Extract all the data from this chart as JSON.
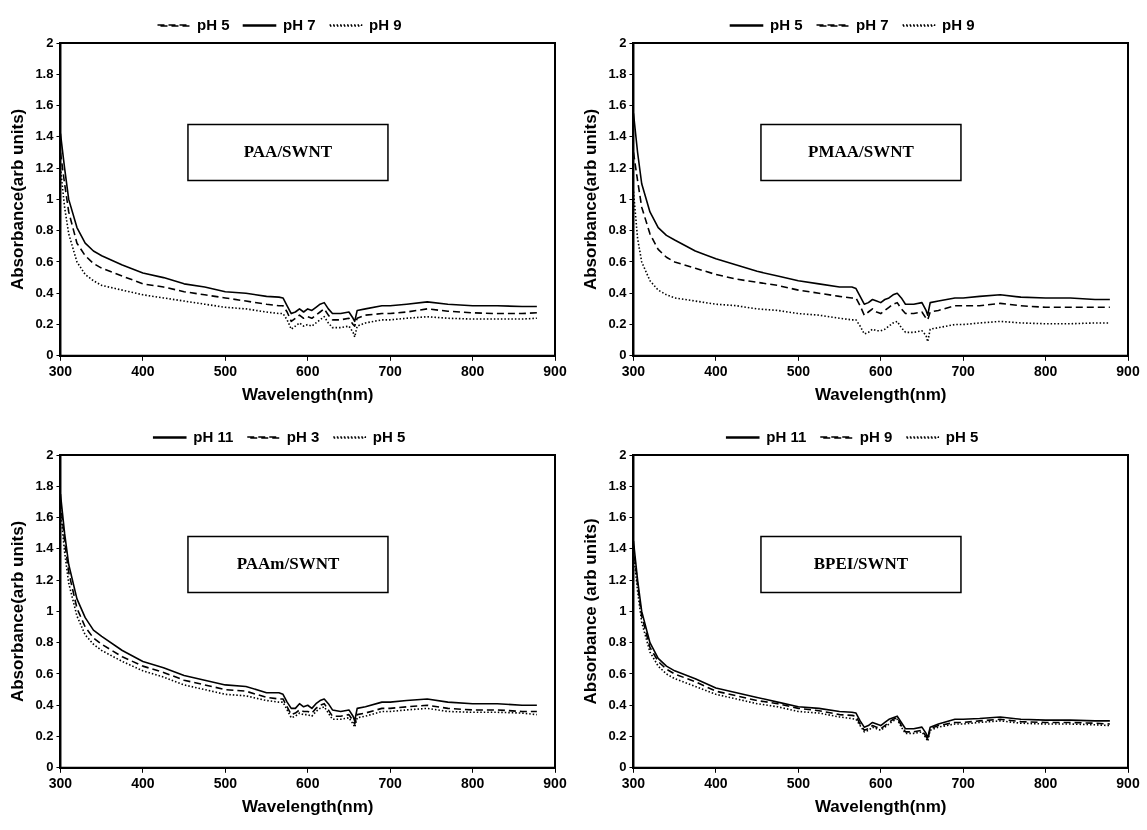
{
  "chart_data": [
    {
      "type": "line",
      "xlabel": "Wavelength(nm)",
      "ylabel": "Absorbance(arb units)",
      "annotations": [
        "PAA/SWNT"
      ],
      "legend": "top",
      "grid": false,
      "x": [
        300,
        305,
        310,
        320,
        330,
        340,
        350,
        375,
        400,
        425,
        450,
        475,
        500,
        525,
        550,
        565,
        570,
        575,
        580,
        585,
        590,
        595,
        600,
        605,
        610,
        615,
        620,
        625,
        630,
        640,
        650,
        655,
        657,
        660,
        670,
        690,
        700,
        720,
        745,
        770,
        800,
        830,
        860,
        878
      ],
      "xlim": [
        300,
        900
      ],
      "xticks": [
        300,
        400,
        500,
        600,
        700,
        800,
        900
      ],
      "ylim": [
        0,
        2
      ],
      "yticks": [
        0,
        0.2,
        0.4,
        0.6,
        0.8,
        1,
        1.2,
        1.4,
        1.6,
        1.8,
        2
      ],
      "series": [
        {
          "name": "pH 5",
          "color": "#000000",
          "line_style": "dashed",
          "values": [
            1.3,
            1.1,
            0.92,
            0.72,
            0.64,
            0.59,
            0.56,
            0.51,
            0.46,
            0.44,
            0.41,
            0.39,
            0.37,
            0.35,
            0.33,
            0.32,
            0.32,
            0.28,
            0.22,
            0.24,
            0.26,
            0.24,
            0.25,
            0.24,
            0.26,
            0.28,
            0.3,
            0.26,
            0.23,
            0.23,
            0.24,
            0.2,
            0.19,
            0.24,
            0.26,
            0.27,
            0.27,
            0.28,
            0.3,
            0.285,
            0.275,
            0.27,
            0.27,
            0.275
          ]
        },
        {
          "name": "pH 7",
          "color": "#000000",
          "line_style": "solid",
          "values": [
            1.42,
            1.2,
            1.0,
            0.82,
            0.72,
            0.67,
            0.64,
            0.58,
            0.53,
            0.5,
            0.46,
            0.44,
            0.41,
            0.4,
            0.38,
            0.375,
            0.37,
            0.32,
            0.27,
            0.28,
            0.3,
            0.28,
            0.3,
            0.29,
            0.31,
            0.33,
            0.34,
            0.3,
            0.27,
            0.27,
            0.28,
            0.24,
            0.22,
            0.29,
            0.3,
            0.32,
            0.32,
            0.33,
            0.345,
            0.33,
            0.32,
            0.32,
            0.315,
            0.315
          ]
        },
        {
          "name": "pH 9",
          "color": "#000000",
          "line_style": "dotted",
          "values": [
            1.2,
            0.95,
            0.78,
            0.6,
            0.52,
            0.48,
            0.45,
            0.42,
            0.39,
            0.37,
            0.35,
            0.33,
            0.31,
            0.3,
            0.28,
            0.27,
            0.27,
            0.23,
            0.17,
            0.19,
            0.21,
            0.19,
            0.2,
            0.19,
            0.21,
            0.23,
            0.25,
            0.21,
            0.18,
            0.18,
            0.19,
            0.15,
            0.12,
            0.19,
            0.21,
            0.23,
            0.23,
            0.24,
            0.25,
            0.24,
            0.235,
            0.235,
            0.235,
            0.24
          ]
        }
      ]
    },
    {
      "type": "line",
      "xlabel": "Wavelength(nm)",
      "ylabel": "Absorbance(arb units)",
      "annotations": [
        "PMAA/SWNT"
      ],
      "legend": "top",
      "grid": false,
      "x": [
        300,
        305,
        310,
        320,
        330,
        340,
        350,
        375,
        400,
        425,
        450,
        475,
        500,
        525,
        550,
        565,
        570,
        575,
        580,
        585,
        590,
        595,
        600,
        605,
        610,
        615,
        620,
        625,
        630,
        640,
        650,
        655,
        657,
        660,
        670,
        690,
        700,
        720,
        745,
        770,
        800,
        830,
        860,
        878
      ],
      "xlim": [
        300,
        900
      ],
      "xticks": [
        300,
        400,
        500,
        600,
        700,
        800,
        900
      ],
      "ylim": [
        0,
        2
      ],
      "yticks": [
        0,
        0.2,
        0.4,
        0.6,
        0.8,
        1,
        1.2,
        1.4,
        1.6,
        1.8,
        2
      ],
      "series": [
        {
          "name": "pH 5",
          "color": "#000000",
          "line_style": "solid",
          "values": [
            1.55,
            1.3,
            1.1,
            0.92,
            0.82,
            0.77,
            0.74,
            0.67,
            0.62,
            0.58,
            0.54,
            0.51,
            0.48,
            0.46,
            0.44,
            0.44,
            0.43,
            0.38,
            0.33,
            0.34,
            0.36,
            0.35,
            0.34,
            0.36,
            0.37,
            0.39,
            0.4,
            0.37,
            0.33,
            0.33,
            0.34,
            0.29,
            0.26,
            0.34,
            0.35,
            0.37,
            0.37,
            0.38,
            0.39,
            0.375,
            0.37,
            0.37,
            0.36,
            0.36
          ]
        },
        {
          "name": "pH 7",
          "color": "#000000",
          "line_style": "dashed",
          "values": [
            1.3,
            1.12,
            0.95,
            0.78,
            0.68,
            0.63,
            0.6,
            0.56,
            0.52,
            0.49,
            0.47,
            0.45,
            0.42,
            0.4,
            0.38,
            0.37,
            0.37,
            0.32,
            0.26,
            0.28,
            0.3,
            0.28,
            0.27,
            0.29,
            0.31,
            0.33,
            0.34,
            0.3,
            0.27,
            0.27,
            0.28,
            0.24,
            0.23,
            0.28,
            0.29,
            0.32,
            0.32,
            0.32,
            0.335,
            0.32,
            0.31,
            0.31,
            0.31,
            0.31
          ]
        },
        {
          "name": "pH 9",
          "color": "#000000",
          "line_style": "dotted",
          "values": [
            1.05,
            0.75,
            0.6,
            0.48,
            0.42,
            0.39,
            0.37,
            0.35,
            0.33,
            0.32,
            0.3,
            0.29,
            0.27,
            0.26,
            0.24,
            0.23,
            0.23,
            0.19,
            0.14,
            0.15,
            0.17,
            0.16,
            0.16,
            0.17,
            0.19,
            0.21,
            0.22,
            0.18,
            0.15,
            0.15,
            0.16,
            0.13,
            0.09,
            0.17,
            0.18,
            0.2,
            0.2,
            0.21,
            0.22,
            0.21,
            0.205,
            0.205,
            0.21,
            0.21
          ]
        }
      ]
    },
    {
      "type": "line",
      "xlabel": "Wavelength(nm)",
      "ylabel": "Absorbance(arb units)",
      "annotations": [
        "PAAm/SWNT"
      ],
      "legend": "top",
      "grid": false,
      "x": [
        300,
        305,
        310,
        320,
        330,
        340,
        350,
        375,
        400,
        425,
        450,
        475,
        500,
        525,
        550,
        565,
        570,
        575,
        580,
        585,
        590,
        595,
        600,
        605,
        610,
        615,
        620,
        625,
        630,
        640,
        650,
        655,
        657,
        660,
        670,
        690,
        700,
        720,
        745,
        770,
        800,
        830,
        860,
        878
      ],
      "xlim": [
        300,
        900
      ],
      "xticks": [
        300,
        400,
        500,
        600,
        700,
        800,
        900
      ],
      "ylim": [
        0,
        2
      ],
      "yticks": [
        0,
        0.2,
        0.4,
        0.6,
        0.8,
        1,
        1.2,
        1.4,
        1.6,
        1.8,
        2
      ],
      "series": [
        {
          "name": "pH 11",
          "color": "#000000",
          "line_style": "solid",
          "values": [
            1.75,
            1.5,
            1.3,
            1.08,
            0.96,
            0.88,
            0.84,
            0.75,
            0.68,
            0.64,
            0.59,
            0.56,
            0.53,
            0.52,
            0.48,
            0.48,
            0.47,
            0.42,
            0.38,
            0.38,
            0.41,
            0.39,
            0.4,
            0.38,
            0.41,
            0.43,
            0.44,
            0.41,
            0.37,
            0.36,
            0.37,
            0.33,
            0.3,
            0.38,
            0.39,
            0.42,
            0.42,
            0.43,
            0.44,
            0.42,
            0.41,
            0.41,
            0.4,
            0.4
          ]
        },
        {
          "name": "pH 3",
          "color": "#000000",
          "line_style": "dashed",
          "values": [
            1.7,
            1.45,
            1.25,
            1.02,
            0.9,
            0.83,
            0.79,
            0.71,
            0.65,
            0.61,
            0.56,
            0.53,
            0.5,
            0.49,
            0.45,
            0.44,
            0.44,
            0.39,
            0.34,
            0.35,
            0.37,
            0.36,
            0.36,
            0.35,
            0.38,
            0.4,
            0.41,
            0.37,
            0.33,
            0.33,
            0.34,
            0.3,
            0.28,
            0.34,
            0.35,
            0.38,
            0.38,
            0.39,
            0.4,
            0.38,
            0.37,
            0.37,
            0.36,
            0.36
          ]
        },
        {
          "name": "pH 5",
          "color": "#000000",
          "line_style": "dotted",
          "values": [
            1.65,
            1.38,
            1.18,
            0.97,
            0.85,
            0.79,
            0.75,
            0.68,
            0.62,
            0.58,
            0.53,
            0.5,
            0.47,
            0.46,
            0.43,
            0.42,
            0.42,
            0.37,
            0.32,
            0.33,
            0.35,
            0.34,
            0.34,
            0.33,
            0.36,
            0.38,
            0.39,
            0.35,
            0.31,
            0.31,
            0.32,
            0.28,
            0.26,
            0.32,
            0.33,
            0.36,
            0.36,
            0.37,
            0.38,
            0.36,
            0.355,
            0.355,
            0.35,
            0.34
          ]
        }
      ]
    },
    {
      "type": "line",
      "xlabel": "Wavelength(nm)",
      "ylabel": "Absorbance (arb units)",
      "annotations": [
        "BPEI/SWNT"
      ],
      "legend": "top",
      "grid": false,
      "x": [
        300,
        305,
        310,
        320,
        330,
        340,
        350,
        375,
        400,
        425,
        450,
        475,
        500,
        525,
        550,
        565,
        570,
        575,
        580,
        585,
        590,
        595,
        600,
        605,
        610,
        615,
        620,
        625,
        630,
        640,
        650,
        655,
        657,
        660,
        670,
        690,
        700,
        720,
        745,
        770,
        800,
        830,
        860,
        878
      ],
      "xlim": [
        300,
        900
      ],
      "xticks": [
        300,
        400,
        500,
        600,
        700,
        800,
        900
      ],
      "ylim": [
        0,
        2
      ],
      "yticks": [
        0,
        0.2,
        0.4,
        0.6,
        0.8,
        1,
        1.2,
        1.4,
        1.6,
        1.8,
        2
      ],
      "series": [
        {
          "name": "pH 11",
          "color": "#000000",
          "line_style": "solid",
          "values": [
            1.45,
            1.2,
            1.0,
            0.8,
            0.7,
            0.65,
            0.62,
            0.57,
            0.51,
            0.48,
            0.45,
            0.42,
            0.39,
            0.38,
            0.36,
            0.355,
            0.35,
            0.3,
            0.26,
            0.27,
            0.29,
            0.28,
            0.27,
            0.29,
            0.31,
            0.32,
            0.33,
            0.29,
            0.25,
            0.25,
            0.26,
            0.22,
            0.19,
            0.26,
            0.28,
            0.31,
            0.31,
            0.315,
            0.325,
            0.31,
            0.305,
            0.305,
            0.3,
            0.3
          ]
        },
        {
          "name": "pH 9",
          "color": "#000000",
          "line_style": "dashed",
          "values": [
            1.42,
            1.17,
            0.97,
            0.77,
            0.68,
            0.63,
            0.6,
            0.55,
            0.49,
            0.46,
            0.43,
            0.41,
            0.38,
            0.365,
            0.34,
            0.335,
            0.33,
            0.28,
            0.24,
            0.25,
            0.27,
            0.26,
            0.25,
            0.27,
            0.29,
            0.31,
            0.32,
            0.27,
            0.23,
            0.23,
            0.24,
            0.2,
            0.18,
            0.25,
            0.27,
            0.29,
            0.29,
            0.3,
            0.31,
            0.295,
            0.29,
            0.29,
            0.285,
            0.28
          ]
        },
        {
          "name": "pH 5",
          "color": "#000000",
          "line_style": "dotted",
          "values": [
            1.38,
            1.13,
            0.93,
            0.74,
            0.65,
            0.6,
            0.57,
            0.52,
            0.47,
            0.44,
            0.41,
            0.39,
            0.36,
            0.35,
            0.325,
            0.315,
            0.31,
            0.27,
            0.23,
            0.24,
            0.26,
            0.25,
            0.24,
            0.26,
            0.28,
            0.3,
            0.31,
            0.26,
            0.22,
            0.22,
            0.23,
            0.19,
            0.17,
            0.24,
            0.26,
            0.28,
            0.28,
            0.29,
            0.3,
            0.285,
            0.28,
            0.28,
            0.275,
            0.27
          ]
        }
      ]
    }
  ]
}
